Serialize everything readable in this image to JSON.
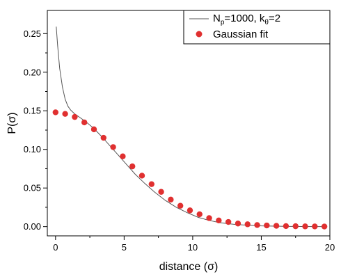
{
  "chart_data": {
    "type": "scatter",
    "xlabel": "distance (σ)",
    "ylabel": "P(σ)",
    "xlim": [
      -0.6,
      20
    ],
    "ylim": [
      -0.012,
      0.28
    ],
    "x_ticks": [
      0,
      5,
      10,
      15,
      20
    ],
    "y_ticks": [
      0.0,
      0.05,
      0.1,
      0.15,
      0.2,
      0.25
    ],
    "x_tick_labels": [
      "0",
      "5",
      "10",
      "15",
      "20"
    ],
    "y_tick_labels": [
      "0.00",
      "0.05",
      "0.10",
      "0.15",
      "0.20",
      "0.25"
    ],
    "grid": false,
    "legend_position": "top-right",
    "legend": {
      "line_label_main": "N",
      "line_label_sub1": "p",
      "line_label_mid": "=1000, k",
      "line_label_sub2": "θ",
      "line_label_end": "=2",
      "scatter_label": "Gaussian fit"
    },
    "series": [
      {
        "name": "Np=1000, kθ=2",
        "kind": "line",
        "color": "#555555",
        "x": [
          0.05,
          0.15,
          0.3,
          0.5,
          0.7,
          0.9,
          1.1,
          1.4,
          1.8,
          2.2,
          2.8,
          3.4,
          4.0,
          4.6,
          5.2,
          5.8,
          6.5,
          7.2,
          8.0,
          8.8,
          9.6,
          10.4,
          11.2,
          12.0,
          13.0,
          14.0,
          15.0,
          16.0,
          17.0,
          18.0,
          19.0,
          19.7
        ],
        "y": [
          0.259,
          0.235,
          0.205,
          0.181,
          0.165,
          0.156,
          0.151,
          0.146,
          0.141,
          0.136,
          0.127,
          0.116,
          0.104,
          0.092,
          0.08,
          0.068,
          0.056,
          0.045,
          0.034,
          0.025,
          0.018,
          0.012,
          0.008,
          0.005,
          0.003,
          0.0018,
          0.001,
          0.0006,
          0.0003,
          0.0002,
          0.0001,
          0.0001
        ]
      },
      {
        "name": "Gaussian fit",
        "kind": "scatter",
        "color": "#e03030",
        "x": [
          0.0,
          0.7,
          1.4,
          2.1,
          2.8,
          3.5,
          4.2,
          4.9,
          5.6,
          6.3,
          7.0,
          7.7,
          8.4,
          9.1,
          9.8,
          10.5,
          11.2,
          11.9,
          12.6,
          13.3,
          14.0,
          14.7,
          15.4,
          16.1,
          16.8,
          17.5,
          18.2,
          18.9,
          19.6
        ],
        "y": [
          0.148,
          0.146,
          0.142,
          0.135,
          0.126,
          0.115,
          0.103,
          0.091,
          0.078,
          0.066,
          0.055,
          0.045,
          0.035,
          0.027,
          0.021,
          0.016,
          0.011,
          0.008,
          0.006,
          0.004,
          0.003,
          0.002,
          0.0015,
          0.001,
          0.0007,
          0.0005,
          0.0003,
          0.0002,
          0.0001
        ]
      }
    ]
  }
}
